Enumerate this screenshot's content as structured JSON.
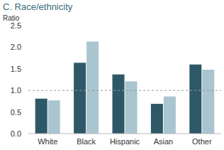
{
  "chart_data": {
    "type": "bar",
    "title": "C. Race/ethnicity",
    "y_label": "Ratio",
    "categories": [
      "White",
      "Black",
      "Hispanic",
      "Asian",
      "Other"
    ],
    "series": [
      {
        "color": "#2e5867",
        "values": [
          0.81,
          1.64,
          1.37,
          0.69,
          1.6
        ]
      },
      {
        "color": "#a9c5d0",
        "values": [
          0.77,
          2.13,
          1.21,
          0.86,
          1.48
        ]
      }
    ],
    "ylim": [
      0,
      2.5
    ],
    "yticks": [
      {
        "value": 0,
        "label": "0.0"
      },
      {
        "value": 0.5,
        "label": "0.5"
      },
      {
        "value": 1,
        "label": "1.0"
      },
      {
        "value": 1.5,
        "label": "1.5"
      },
      {
        "value": 2,
        "label": "2.0"
      },
      {
        "value": 2.5,
        "label": "2.5"
      }
    ],
    "reference_value": 1,
    "grid": false
  }
}
